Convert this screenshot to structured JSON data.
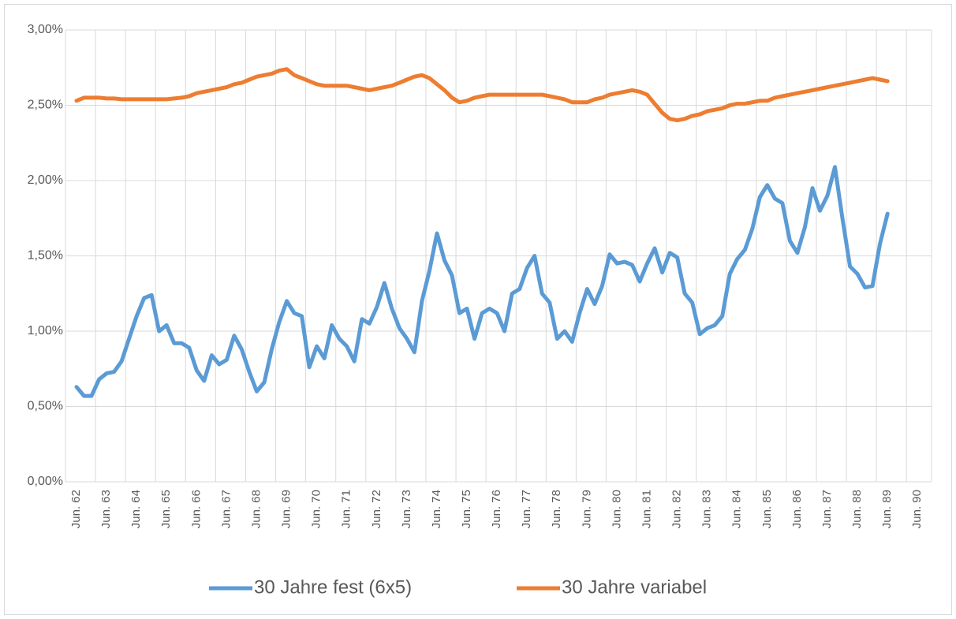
{
  "chart_data": {
    "type": "line",
    "categories": [
      "Jun. 62",
      null,
      null,
      null,
      "Jun. 63",
      null,
      null,
      null,
      "Jun. 64",
      null,
      null,
      null,
      "Jun. 65",
      null,
      null,
      null,
      "Jun. 66",
      null,
      null,
      null,
      "Jun. 67",
      null,
      null,
      null,
      "Jun. 68",
      null,
      null,
      null,
      "Jun. 69",
      null,
      null,
      null,
      "Jun. 70",
      null,
      null,
      null,
      "Jun. 71",
      null,
      null,
      null,
      "Jun. 72",
      null,
      null,
      null,
      "Jun. 73",
      null,
      null,
      null,
      "Jun. 74",
      null,
      null,
      null,
      "Jun. 75",
      null,
      null,
      null,
      "Jun. 76",
      null,
      null,
      null,
      "Jun. 77",
      null,
      null,
      null,
      "Jun. 78",
      null,
      null,
      null,
      "Jun. 79",
      null,
      null,
      null,
      "Jun. 80",
      null,
      null,
      null,
      "Jun. 81",
      null,
      null,
      null,
      "Jun. 82",
      null,
      null,
      null,
      "Jun. 83",
      null,
      null,
      null,
      "Jun. 84",
      null,
      null,
      null,
      "Jun. 85",
      null,
      null,
      null,
      "Jun. 86",
      null,
      null,
      null,
      "Jun. 87",
      null,
      null,
      null,
      "Jun. 88",
      null,
      null,
      null,
      "Jun. 89",
      null,
      null,
      null,
      "Jun. 90"
    ],
    "series": [
      {
        "name": "30 Jahre fest (6x5)",
        "color": "#5b9bd5",
        "values": [
          0.63,
          0.57,
          0.57,
          0.68,
          0.72,
          0.73,
          0.8,
          0.95,
          1.1,
          1.22,
          1.24,
          1.0,
          1.04,
          0.92,
          0.92,
          0.89,
          0.74,
          0.67,
          0.84,
          0.78,
          0.81,
          0.97,
          0.88,
          0.73,
          0.6,
          0.66,
          0.88,
          1.06,
          1.2,
          1.12,
          1.1,
          0.76,
          0.9,
          0.82,
          1.04,
          0.95,
          0.9,
          0.8,
          1.08,
          1.05,
          1.16,
          1.32,
          1.15,
          1.02,
          0.95,
          0.86,
          1.2,
          1.4,
          1.65,
          1.47,
          1.37,
          1.12,
          1.15,
          0.95,
          1.12,
          1.15,
          1.12,
          1.0,
          1.25,
          1.28,
          1.42,
          1.5,
          1.25,
          1.19,
          0.95,
          1.0,
          0.93,
          1.12,
          1.28,
          1.18,
          1.3,
          1.51,
          1.45,
          1.46,
          1.44,
          1.33,
          1.45,
          1.55,
          1.39,
          1.52,
          1.49,
          1.25,
          1.19,
          0.98,
          1.02,
          1.04,
          1.1,
          1.38,
          1.48,
          1.54,
          1.68,
          1.89,
          1.97,
          1.88,
          1.85,
          1.6,
          1.52,
          1.69,
          1.95,
          1.8,
          1.9,
          2.09,
          1.75,
          1.43,
          1.38,
          1.29,
          1.3,
          1.58,
          1.78,
          null,
          null,
          null,
          null
        ]
      },
      {
        "name": "30 Jahre variabel",
        "color": "#ed7d31",
        "values": [
          2.53,
          2.55,
          2.55,
          2.55,
          2.545,
          2.545,
          2.54,
          2.54,
          2.54,
          2.54,
          2.54,
          2.54,
          2.54,
          2.545,
          2.55,
          2.56,
          2.58,
          2.59,
          2.6,
          2.61,
          2.62,
          2.64,
          2.65,
          2.67,
          2.69,
          2.7,
          2.71,
          2.73,
          2.74,
          2.7,
          2.68,
          2.66,
          2.64,
          2.63,
          2.63,
          2.63,
          2.63,
          2.62,
          2.61,
          2.6,
          2.61,
          2.62,
          2.63,
          2.65,
          2.67,
          2.69,
          2.7,
          2.68,
          2.64,
          2.6,
          2.55,
          2.52,
          2.53,
          2.55,
          2.56,
          2.57,
          2.57,
          2.57,
          2.57,
          2.57,
          2.57,
          2.57,
          2.57,
          2.56,
          2.55,
          2.54,
          2.52,
          2.52,
          2.52,
          2.54,
          2.55,
          2.57,
          2.58,
          2.59,
          2.6,
          2.59,
          2.57,
          2.51,
          2.45,
          2.41,
          2.4,
          2.41,
          2.43,
          2.44,
          2.46,
          2.47,
          2.48,
          2.5,
          2.51,
          2.51,
          2.52,
          2.53,
          2.53,
          2.55,
          2.56,
          2.57,
          2.58,
          2.59,
          2.6,
          2.61,
          2.62,
          2.63,
          2.64,
          2.65,
          2.66,
          2.67,
          2.68,
          2.67,
          2.66,
          null,
          null,
          null,
          null
        ]
      }
    ],
    "ylim": [
      0,
      3
    ],
    "yticks": [
      {
        "value": 0,
        "label": "0,00%"
      },
      {
        "value": 0.5,
        "label": "0,50%"
      },
      {
        "value": 1,
        "label": "1,00%"
      },
      {
        "value": 1.5,
        "label": "1,50%"
      },
      {
        "value": 2,
        "label": "2,00%"
      },
      {
        "value": 2.5,
        "label": "2,50%"
      },
      {
        "value": 3,
        "label": "3,00%"
      }
    ],
    "grid": true,
    "legend": "bottom"
  }
}
